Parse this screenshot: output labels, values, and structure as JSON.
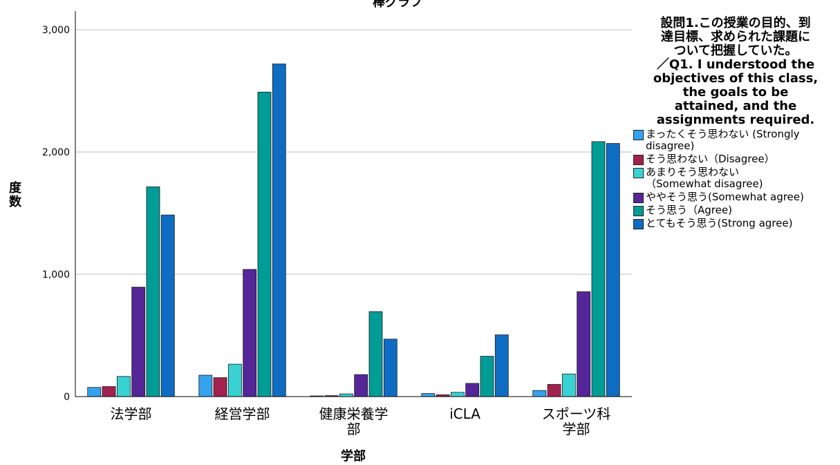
{
  "chart_data": {
    "type": "bar",
    "title": "棒グラフ",
    "xlabel": "学部",
    "ylabel": "度数",
    "ylim": [
      0,
      3000
    ],
    "yticks": [
      0,
      1000,
      2000,
      3000
    ],
    "ytick_labels": [
      "0",
      "1,000",
      "2,000",
      "3,000"
    ],
    "grid": true,
    "legend_position": "right",
    "categories": [
      "法学部",
      "経営学部",
      "健康栄養学部",
      "iCLA",
      "スポーツ科学部"
    ],
    "category_label_lines": [
      [
        "法学部"
      ],
      [
        "経営学部"
      ],
      [
        "健康栄養学",
        "部"
      ],
      [
        "iCLA"
      ],
      [
        "スポーツ科",
        "学部"
      ]
    ],
    "legend_title_lines": [
      "設問1.この授業の目的、到",
      "達目標、求められた課題に",
      "ついて把握していた。",
      "／Q1. I understood the",
      "objectives of this class,",
      "the goals to be",
      "attained, and the",
      "assignments required."
    ],
    "series": [
      {
        "name": "まったくそう思わない (Strongly disagree)",
        "label_lines": [
          "まったくそう思わない (Strongly",
          "disagree)"
        ],
        "color": "#35a2ee",
        "values": [
          75,
          175,
          5,
          25,
          50
        ]
      },
      {
        "name": "そう思わない（Disagree）",
        "label_lines": [
          "そう思わない（Disagree）"
        ],
        "color": "#a3214f",
        "values": [
          82,
          155,
          8,
          15,
          100
        ]
      },
      {
        "name": "あまりそう思わない （Somewhat disagree)",
        "label_lines": [
          "あまりそう思わない",
          "（Somewhat disagree)"
        ],
        "color": "#38d2d2",
        "values": [
          165,
          265,
          22,
          35,
          185
        ]
      },
      {
        "name": "ややそう思う(Somewhat agree)",
        "label_lines": [
          "ややそう思う(Somewhat agree)"
        ],
        "color": "#542698",
        "values": [
          895,
          1040,
          180,
          108,
          858
        ]
      },
      {
        "name": "そう思う（Agree)",
        "label_lines": [
          "そう思う（Agree)"
        ],
        "color": "#019c96",
        "values": [
          1715,
          2490,
          695,
          330,
          2085
        ]
      },
      {
        "name": "とてもそう思う(Strong agree)",
        "label_lines": [
          "とてもそう思う(Strong agree)"
        ],
        "color": "#0e6dc2",
        "values": [
          1485,
          2720,
          470,
          505,
          2070
        ]
      }
    ]
  }
}
